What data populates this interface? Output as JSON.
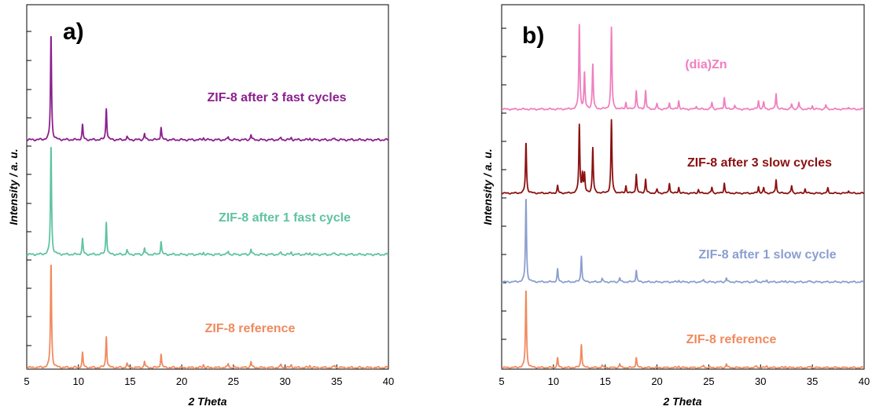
{
  "chart_data": [
    {
      "type": "line",
      "panel_label": "a)",
      "xlabel": "2 Theta",
      "ylabel": "Intensity / a. u.",
      "xlim": [
        5,
        40
      ],
      "xticks": [
        "5",
        "10",
        "15",
        "20",
        "25",
        "30",
        "35",
        "40"
      ],
      "series": [
        {
          "name": "ZIF-8 after 3 fast cycles",
          "color": "#8b1e8f",
          "peaks": [
            [
              7.35,
              1.0
            ],
            [
              10.4,
              0.14
            ],
            [
              12.7,
              0.3
            ],
            [
              14.7,
              0.03
            ],
            [
              16.4,
              0.06
            ],
            [
              18.0,
              0.12
            ],
            [
              22.1,
              0.02
            ],
            [
              24.5,
              0.03
            ],
            [
              26.7,
              0.05
            ],
            [
              29.6,
              0.02
            ],
            [
              30.6,
              0.02
            ],
            [
              32.4,
              0.015
            ],
            [
              34.8,
              0.015
            ]
          ]
        },
        {
          "name": "ZIF-8 after 1 fast cycle",
          "color": "#5fc3a3",
          "peaks": [
            [
              7.35,
              1.0
            ],
            [
              10.4,
              0.14
            ],
            [
              12.7,
              0.3
            ],
            [
              14.7,
              0.04
            ],
            [
              16.4,
              0.06
            ],
            [
              18.0,
              0.12
            ],
            [
              22.1,
              0.02
            ],
            [
              24.5,
              0.03
            ],
            [
              26.7,
              0.05
            ],
            [
              29.6,
              0.02
            ],
            [
              30.6,
              0.02
            ],
            [
              32.4,
              0.015
            ],
            [
              34.8,
              0.015
            ]
          ]
        },
        {
          "name": "ZIF-8 reference",
          "color": "#f08a5e",
          "peaks": [
            [
              7.35,
              1.0
            ],
            [
              10.4,
              0.14
            ],
            [
              12.7,
              0.3
            ],
            [
              14.7,
              0.04
            ],
            [
              16.4,
              0.06
            ],
            [
              18.0,
              0.13
            ],
            [
              22.1,
              0.03
            ],
            [
              24.5,
              0.04
            ],
            [
              26.7,
              0.06
            ],
            [
              29.6,
              0.03
            ],
            [
              30.6,
              0.025
            ],
            [
              32.4,
              0.02
            ],
            [
              34.8,
              0.02
            ]
          ]
        }
      ]
    },
    {
      "type": "line",
      "panel_label": "b)",
      "xlabel": "2 Theta",
      "ylabel": "Intensity / a. u.",
      "xlim": [
        5,
        40
      ],
      "xticks": [
        "5",
        "10",
        "15",
        "20",
        "25",
        "30",
        "35",
        "40"
      ],
      "series": [
        {
          "name": "(dia)Zn",
          "color": "#f07fbf",
          "peaks": [
            [
              12.5,
              1.0
            ],
            [
              13.0,
              0.42
            ],
            [
              13.8,
              0.53
            ],
            [
              15.6,
              0.97
            ],
            [
              17.0,
              0.08
            ],
            [
              18.0,
              0.22
            ],
            [
              18.9,
              0.22
            ],
            [
              20.0,
              0.06
            ],
            [
              21.2,
              0.08
            ],
            [
              22.1,
              0.1
            ],
            [
              23.8,
              0.04
            ],
            [
              25.3,
              0.08
            ],
            [
              26.5,
              0.14
            ],
            [
              27.5,
              0.05
            ],
            [
              29.8,
              0.1
            ],
            [
              30.3,
              0.08
            ],
            [
              31.5,
              0.19
            ],
            [
              33.0,
              0.06
            ],
            [
              33.7,
              0.08
            ],
            [
              35.0,
              0.04
            ],
            [
              36.3,
              0.05
            ],
            [
              38.5,
              0.03
            ]
          ]
        },
        {
          "name": "ZIF-8 after 3 slow cycles",
          "color": "#8b1010",
          "peaks": [
            [
              7.35,
              0.7
            ],
            [
              10.4,
              0.1
            ],
            [
              12.5,
              0.93
            ],
            [
              12.8,
              0.25
            ],
            [
              13.0,
              0.25
            ],
            [
              13.8,
              0.62
            ],
            [
              15.6,
              1.0
            ],
            [
              17.0,
              0.1
            ],
            [
              18.0,
              0.26
            ],
            [
              18.9,
              0.19
            ],
            [
              20.0,
              0.05
            ],
            [
              21.2,
              0.14
            ],
            [
              22.1,
              0.08
            ],
            [
              24.0,
              0.05
            ],
            [
              25.3,
              0.08
            ],
            [
              26.5,
              0.14
            ],
            [
              29.8,
              0.09
            ],
            [
              30.3,
              0.07
            ],
            [
              31.5,
              0.19
            ],
            [
              33.0,
              0.1
            ],
            [
              34.3,
              0.06
            ],
            [
              36.5,
              0.07
            ],
            [
              38.5,
              0.04
            ]
          ]
        },
        {
          "name": "ZIF-8 after 1 slow cycle",
          "color": "#8a9fcf",
          "peaks": [
            [
              7.35,
              1.0
            ],
            [
              10.4,
              0.15
            ],
            [
              12.7,
              0.31
            ],
            [
              14.7,
              0.04
            ],
            [
              16.4,
              0.05
            ],
            [
              18.0,
              0.14
            ],
            [
              22.1,
              0.02
            ],
            [
              24.5,
              0.03
            ],
            [
              26.7,
              0.05
            ],
            [
              29.6,
              0.02
            ],
            [
              30.6,
              0.02
            ],
            [
              32.4,
              0.015
            ],
            [
              34.8,
              0.015
            ]
          ]
        },
        {
          "name": "ZIF-8 reference",
          "color": "#f08a5e",
          "peaks": [
            [
              7.35,
              1.0
            ],
            [
              10.4,
              0.12
            ],
            [
              12.7,
              0.3
            ],
            [
              14.7,
              0.03
            ],
            [
              16.4,
              0.05
            ],
            [
              18.0,
              0.13
            ],
            [
              22.1,
              0.02
            ],
            [
              24.5,
              0.03
            ],
            [
              26.7,
              0.05
            ],
            [
              29.6,
              0.02
            ],
            [
              30.6,
              0.02
            ],
            [
              32.4,
              0.015
            ],
            [
              34.8,
              0.015
            ]
          ]
        }
      ]
    }
  ]
}
